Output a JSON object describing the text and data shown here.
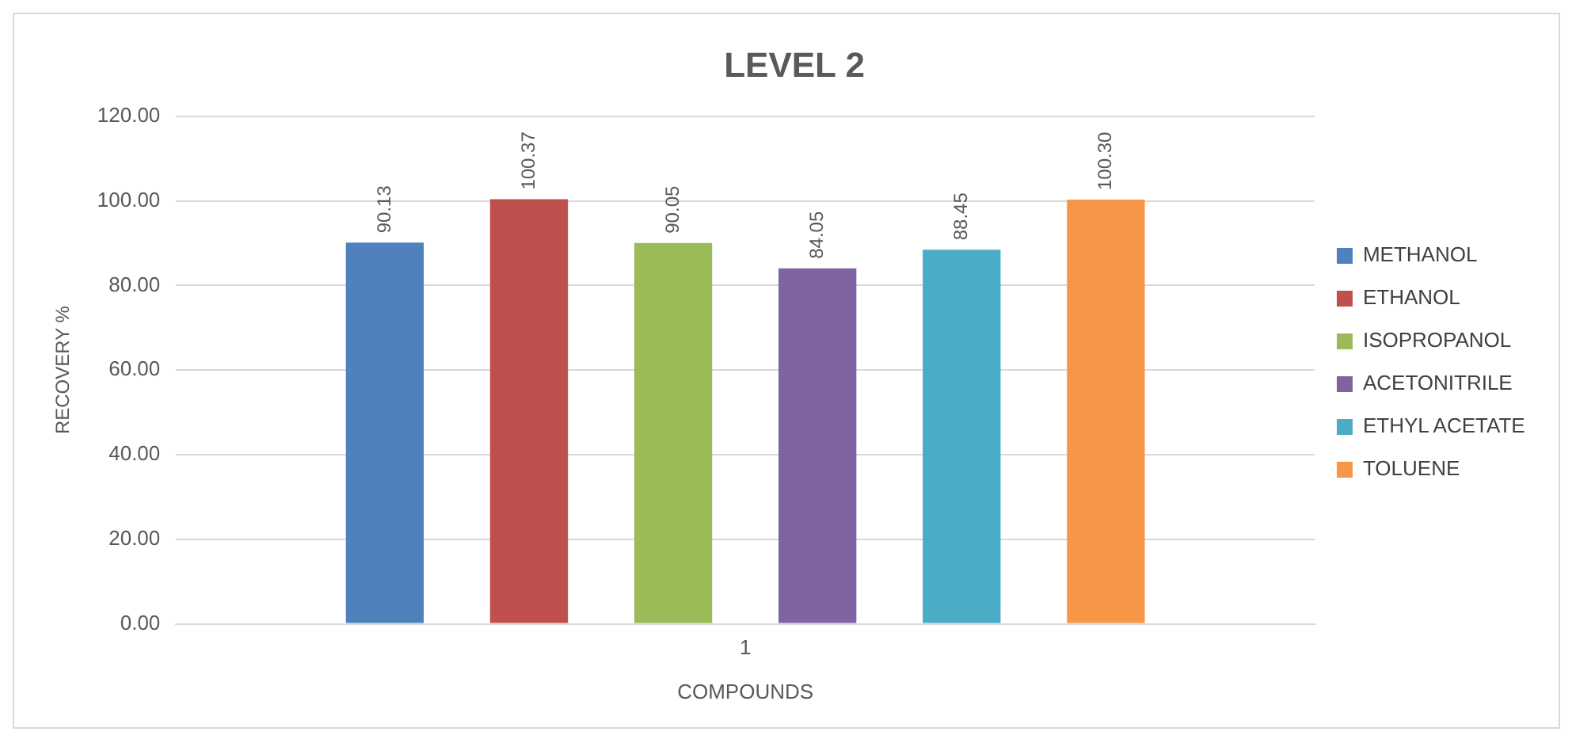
{
  "chart_data": {
    "type": "bar",
    "title": "LEVEL 2",
    "xlabel": "COMPOUNDS",
    "ylabel": "RECOVERY %",
    "categories": [
      "1"
    ],
    "series": [
      {
        "name": "METHANOL",
        "color": "#4f81bd",
        "values": [
          90.13
        ],
        "value_labels": [
          "90.13"
        ]
      },
      {
        "name": "ETHANOL",
        "color": "#c0504d",
        "values": [
          100.37
        ],
        "value_labels": [
          "100.37"
        ]
      },
      {
        "name": "ISOPROPANOL",
        "color": "#9bbb59",
        "values": [
          90.05
        ],
        "value_labels": [
          "90.05"
        ]
      },
      {
        "name": "ACETONITRILE",
        "color": "#8064a2",
        "values": [
          84.05
        ],
        "value_labels": [
          "84.05"
        ]
      },
      {
        "name": "ETHYL ACETATE",
        "color": "#4bacc6",
        "values": [
          88.45
        ],
        "value_labels": [
          "88.45"
        ]
      },
      {
        "name": "TOLUENE",
        "color": "#f79646",
        "values": [
          100.3
        ],
        "value_labels": [
          "100.30"
        ]
      }
    ],
    "ylim": [
      0,
      120
    ],
    "yticks": [
      {
        "value": 0,
        "label": "0.00"
      },
      {
        "value": 20,
        "label": "20.00"
      },
      {
        "value": 40,
        "label": "40.00"
      },
      {
        "value": 60,
        "label": "60.00"
      },
      {
        "value": 80,
        "label": "80.00"
      },
      {
        "value": 100,
        "label": "100.00"
      },
      {
        "value": 120,
        "label": "120.00"
      }
    ],
    "grid": "y",
    "legend": "right"
  }
}
